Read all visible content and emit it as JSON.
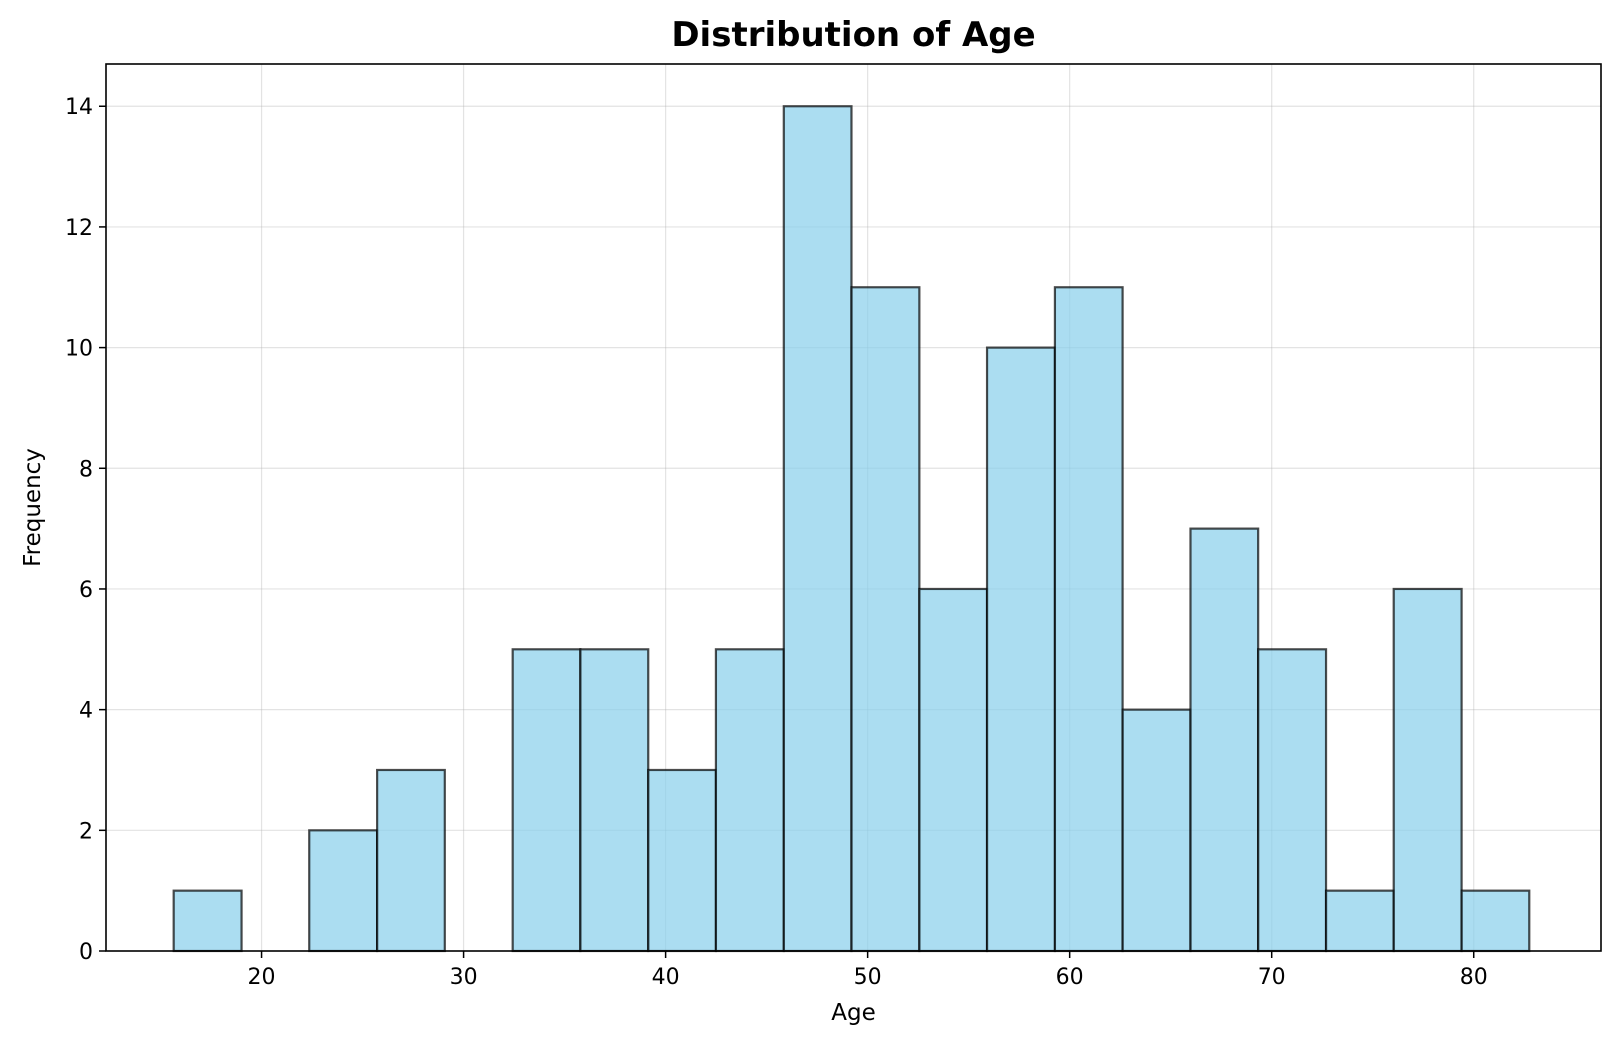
{
  "chart_data": {
    "type": "bar",
    "title": "Distribution of Age",
    "xlabel": "Age",
    "ylabel": "Frequency",
    "xlim": [
      12.3,
      86.3
    ],
    "ylim": [
      0,
      14.7
    ],
    "xticks": [
      20,
      30,
      40,
      50,
      60,
      70,
      80
    ],
    "yticks": [
      0,
      2,
      4,
      6,
      8,
      10,
      12,
      14
    ],
    "grid": true,
    "bar_color": "#87ceeb",
    "edge_color": "#000000",
    "bins": [
      {
        "x0": 15.65,
        "x1": 19.01,
        "count": 1
      },
      {
        "x0": 19.01,
        "x1": 22.36,
        "count": 0
      },
      {
        "x0": 22.36,
        "x1": 25.72,
        "count": 2
      },
      {
        "x0": 25.72,
        "x1": 29.07,
        "count": 3
      },
      {
        "x0": 29.07,
        "x1": 32.43,
        "count": 0
      },
      {
        "x0": 32.43,
        "x1": 35.78,
        "count": 5
      },
      {
        "x0": 35.78,
        "x1": 39.14,
        "count": 5
      },
      {
        "x0": 39.14,
        "x1": 42.49,
        "count": 3
      },
      {
        "x0": 42.49,
        "x1": 45.85,
        "count": 5
      },
      {
        "x0": 45.85,
        "x1": 49.2,
        "count": 14
      },
      {
        "x0": 49.2,
        "x1": 52.56,
        "count": 11
      },
      {
        "x0": 52.56,
        "x1": 55.91,
        "count": 6
      },
      {
        "x0": 55.91,
        "x1": 59.27,
        "count": 10
      },
      {
        "x0": 59.27,
        "x1": 62.62,
        "count": 11
      },
      {
        "x0": 62.62,
        "x1": 65.98,
        "count": 4
      },
      {
        "x0": 65.98,
        "x1": 69.33,
        "count": 7
      },
      {
        "x0": 69.33,
        "x1": 72.69,
        "count": 5
      },
      {
        "x0": 72.69,
        "x1": 76.04,
        "count": 1
      },
      {
        "x0": 76.04,
        "x1": 79.4,
        "count": 6
      },
      {
        "x0": 79.4,
        "x1": 82.75,
        "count": 1
      }
    ]
  }
}
